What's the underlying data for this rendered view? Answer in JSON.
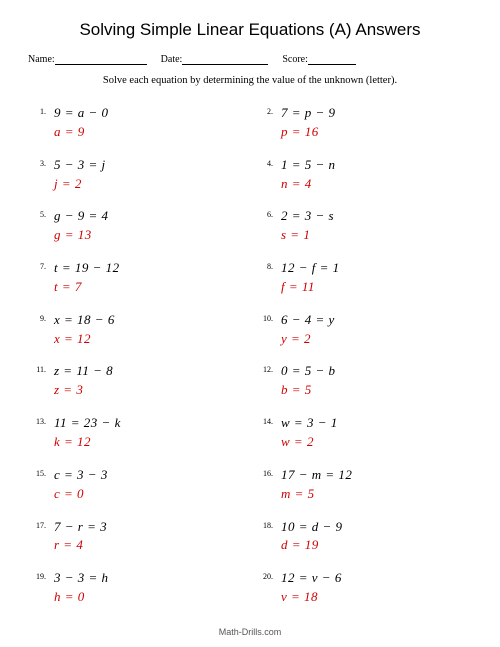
{
  "title": "Solving Simple Linear Equations (A) Answers",
  "header": {
    "name_label": "Name:",
    "date_label": "Date:",
    "score_label": "Score:",
    "name_line_width": 92,
    "date_line_width": 86,
    "score_line_width": 48
  },
  "instructions": "Solve each equation by determining the value of the unknown (letter).",
  "answer_color": "#d00000",
  "problems": [
    {
      "n": "1.",
      "equation": "9 = a − 0",
      "answer": "a = 9"
    },
    {
      "n": "2.",
      "equation": "7 = p − 9",
      "answer": "p = 16"
    },
    {
      "n": "3.",
      "equation": "5 − 3 = j",
      "answer": "j = 2"
    },
    {
      "n": "4.",
      "equation": "1 = 5 − n",
      "answer": "n = 4"
    },
    {
      "n": "5.",
      "equation": "g − 9 = 4",
      "answer": "g = 13"
    },
    {
      "n": "6.",
      "equation": "2 = 3 − s",
      "answer": "s = 1"
    },
    {
      "n": "7.",
      "equation": "t = 19 − 12",
      "answer": "t = 7"
    },
    {
      "n": "8.",
      "equation": "12 − f = 1",
      "answer": "f = 11"
    },
    {
      "n": "9.",
      "equation": "x = 18 − 6",
      "answer": "x = 12"
    },
    {
      "n": "10.",
      "equation": "6 − 4 = y",
      "answer": "y = 2"
    },
    {
      "n": "11.",
      "equation": "z = 11 − 8",
      "answer": "z = 3"
    },
    {
      "n": "12.",
      "equation": "0 = 5 − b",
      "answer": "b = 5"
    },
    {
      "n": "13.",
      "equation": "11 = 23 − k",
      "answer": "k = 12"
    },
    {
      "n": "14.",
      "equation": "w = 3 − 1",
      "answer": "w = 2"
    },
    {
      "n": "15.",
      "equation": "c = 3 − 3",
      "answer": "c = 0"
    },
    {
      "n": "16.",
      "equation": "17 − m = 12",
      "answer": "m = 5"
    },
    {
      "n": "17.",
      "equation": "7 − r = 3",
      "answer": "r = 4"
    },
    {
      "n": "18.",
      "equation": "10 = d − 9",
      "answer": "d = 19"
    },
    {
      "n": "19.",
      "equation": "3 − 3 = h",
      "answer": "h = 0"
    },
    {
      "n": "20.",
      "equation": "12 = v − 6",
      "answer": "v = 18"
    }
  ],
  "footer": "Math-Drills.com"
}
